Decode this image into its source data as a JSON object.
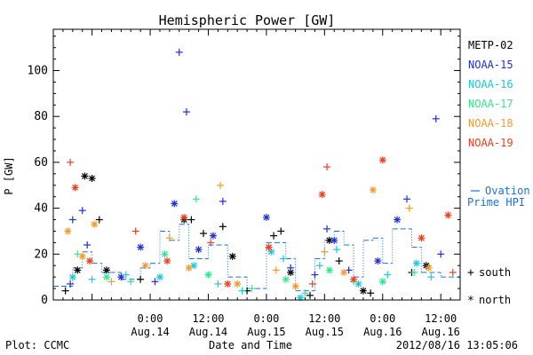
{
  "chart_data": {
    "type": "scatter",
    "title": "Hemispheric Power [GW]",
    "xlabel": "Date and Time",
    "ylabel": "P [GW]",
    "ylim": [
      0,
      118
    ],
    "xlim": [
      "2012-08-13 04:00",
      "2012-08-16 16:00"
    ],
    "y_ticks": [
      0,
      20,
      40,
      60,
      80,
      100
    ],
    "x_ticks": [
      {
        "x": "2012-08-14 00:00",
        "line1": "0:00",
        "line2": "Aug.14"
      },
      {
        "x": "2012-08-14 12:00",
        "line1": "12:00",
        "line2": "Aug.14"
      },
      {
        "x": "2012-08-15 00:00",
        "line1": "0:00",
        "line2": "Aug.15"
      },
      {
        "x": "2012-08-15 12:00",
        "line1": "12:00",
        "line2": "Aug.15"
      },
      {
        "x": "2012-08-16 00:00",
        "line1": "0:00",
        "line2": "Aug.16"
      },
      {
        "x": "2012-08-16 12:00",
        "line1": "12:00",
        "line2": "Aug.16"
      }
    ],
    "grid": false,
    "legend": {
      "placement": "right",
      "markers": [
        {
          "symbol": "+",
          "label": "south"
        },
        {
          "symbol": "*",
          "label": "north"
        }
      ]
    },
    "series": [
      {
        "name": "METP-02",
        "color": "#000000",
        "points": [
          {
            "x": "2012-08-13 06:30",
            "y": 4,
            "m": "+"
          },
          {
            "x": "2012-08-13 09:00",
            "y": 13,
            "m": "*"
          },
          {
            "x": "2012-08-13 10:30",
            "y": 54,
            "m": "*"
          },
          {
            "x": "2012-08-13 12:00",
            "y": 53,
            "m": "*"
          },
          {
            "x": "2012-08-13 13:30",
            "y": 35,
            "m": "+"
          },
          {
            "x": "2012-08-13 15:00",
            "y": 13,
            "m": "*"
          },
          {
            "x": "2012-08-13 22:00",
            "y": 9,
            "m": "+"
          },
          {
            "x": "2012-08-14 07:00",
            "y": 35,
            "m": "*"
          },
          {
            "x": "2012-08-14 08:30",
            "y": 35,
            "m": "+"
          },
          {
            "x": "2012-08-14 11:00",
            "y": 29,
            "m": "+"
          },
          {
            "x": "2012-08-14 15:00",
            "y": 32,
            "m": "+"
          },
          {
            "x": "2012-08-14 17:00",
            "y": 19,
            "m": "*"
          },
          {
            "x": "2012-08-14 20:00",
            "y": 4,
            "m": "+"
          },
          {
            "x": "2012-08-15 01:30",
            "y": 28,
            "m": "+"
          },
          {
            "x": "2012-08-15 03:00",
            "y": 30,
            "m": "+"
          },
          {
            "x": "2012-08-15 05:00",
            "y": 12,
            "m": "*"
          },
          {
            "x": "2012-08-15 09:00",
            "y": 2,
            "m": "+"
          },
          {
            "x": "2012-08-15 13:00",
            "y": 26,
            "m": "*"
          },
          {
            "x": "2012-08-15 15:00",
            "y": 17,
            "m": "+"
          },
          {
            "x": "2012-08-15 20:00",
            "y": 4,
            "m": "*"
          },
          {
            "x": "2012-08-15 21:30",
            "y": 3,
            "m": "+"
          },
          {
            "x": "2012-08-16 06:00",
            "y": 12,
            "m": "+"
          },
          {
            "x": "2012-08-16 09:00",
            "y": 15,
            "m": "*"
          }
        ]
      },
      {
        "name": "NOAA-15",
        "color": "#1c2fd8",
        "points": [
          {
            "x": "2012-08-13 07:30",
            "y": 7,
            "m": "+"
          },
          {
            "x": "2012-08-13 08:00",
            "y": 35,
            "m": "+"
          },
          {
            "x": "2012-08-13 10:00",
            "y": 39,
            "m": "+"
          },
          {
            "x": "2012-08-13 11:00",
            "y": 24,
            "m": "+"
          },
          {
            "x": "2012-08-13 18:00",
            "y": 10,
            "m": "*"
          },
          {
            "x": "2012-08-13 22:00",
            "y": 23,
            "m": "*"
          },
          {
            "x": "2012-08-14 01:00",
            "y": 8,
            "m": "+"
          },
          {
            "x": "2012-08-14 05:00",
            "y": 42,
            "m": "*"
          },
          {
            "x": "2012-08-14 06:00",
            "y": 108,
            "m": "+"
          },
          {
            "x": "2012-08-14 07:30",
            "y": 82,
            "m": "+"
          },
          {
            "x": "2012-08-14 10:00",
            "y": 22,
            "m": "*"
          },
          {
            "x": "2012-08-14 13:00",
            "y": 28,
            "m": "*"
          },
          {
            "x": "2012-08-14 15:00",
            "y": 43,
            "m": "+"
          },
          {
            "x": "2012-08-15 00:00",
            "y": 36,
            "m": "*"
          },
          {
            "x": "2012-08-15 05:00",
            "y": 14,
            "m": "+"
          },
          {
            "x": "2012-08-15 10:00",
            "y": 11,
            "m": "+"
          },
          {
            "x": "2012-08-15 12:30",
            "y": 31,
            "m": "+"
          },
          {
            "x": "2012-08-15 14:00",
            "y": 26,
            "m": "*"
          },
          {
            "x": "2012-08-15 17:00",
            "y": 13,
            "m": "+"
          },
          {
            "x": "2012-08-15 23:00",
            "y": 17,
            "m": "*"
          },
          {
            "x": "2012-08-16 03:00",
            "y": 35,
            "m": "*"
          },
          {
            "x": "2012-08-16 05:00",
            "y": 44,
            "m": "+"
          },
          {
            "x": "2012-08-16 11:00",
            "y": 79,
            "m": "+"
          },
          {
            "x": "2012-08-16 12:00",
            "y": 20,
            "m": "+"
          }
        ]
      },
      {
        "name": "NOAA-16",
        "color": "#18c8e0",
        "points": [
          {
            "x": "2012-08-13 08:00",
            "y": 10,
            "m": "*"
          },
          {
            "x": "2012-08-13 12:00",
            "y": 9,
            "m": "+"
          },
          {
            "x": "2012-08-13 19:00",
            "y": 11,
            "m": "+"
          },
          {
            "x": "2012-08-14 02:00",
            "y": 10,
            "m": "*"
          },
          {
            "x": "2012-08-14 09:00",
            "y": 15,
            "m": "*"
          },
          {
            "x": "2012-08-14 14:00",
            "y": 7,
            "m": "+"
          },
          {
            "x": "2012-08-14 19:00",
            "y": 4,
            "m": "+"
          },
          {
            "x": "2012-08-15 01:00",
            "y": 21,
            "m": "*"
          },
          {
            "x": "2012-08-15 03:30",
            "y": 18,
            "m": "+"
          },
          {
            "x": "2012-08-15 07:00",
            "y": 1,
            "m": "*"
          },
          {
            "x": "2012-08-15 11:00",
            "y": 15,
            "m": "+"
          },
          {
            "x": "2012-08-15 14:30",
            "y": 22,
            "m": "+"
          },
          {
            "x": "2012-08-15 19:00",
            "y": 7,
            "m": "*"
          },
          {
            "x": "2012-08-16 01:00",
            "y": 11,
            "m": "+"
          },
          {
            "x": "2012-08-16 07:00",
            "y": 16,
            "m": "*"
          },
          {
            "x": "2012-08-16 10:00",
            "y": 10,
            "m": "+"
          }
        ]
      },
      {
        "name": "NOAA-17",
        "color": "#2ee88a",
        "points": [
          {
            "x": "2012-08-13 09:00",
            "y": 20,
            "m": "+"
          },
          {
            "x": "2012-08-13 15:00",
            "y": 10,
            "m": "*"
          },
          {
            "x": "2012-08-13 20:00",
            "y": 8,
            "m": "+"
          },
          {
            "x": "2012-08-14 03:00",
            "y": 20,
            "m": "*"
          },
          {
            "x": "2012-08-14 09:30",
            "y": 44,
            "m": "+"
          },
          {
            "x": "2012-08-14 12:00",
            "y": 11,
            "m": "*"
          },
          {
            "x": "2012-08-14 21:00",
            "y": 5,
            "m": "+"
          },
          {
            "x": "2012-08-15 04:00",
            "y": 9,
            "m": "*"
          },
          {
            "x": "2012-08-15 08:00",
            "y": 3,
            "m": "+"
          },
          {
            "x": "2012-08-15 13:00",
            "y": 13,
            "m": "*"
          },
          {
            "x": "2012-08-15 18:00",
            "y": 8,
            "m": "+"
          },
          {
            "x": "2012-08-16 00:00",
            "y": 8,
            "m": "*"
          },
          {
            "x": "2012-08-16 06:30",
            "y": 12,
            "m": "+"
          }
        ]
      },
      {
        "name": "NOAA-18",
        "color": "#f29a2e",
        "points": [
          {
            "x": "2012-08-13 07:00",
            "y": 30,
            "m": "*"
          },
          {
            "x": "2012-08-13 10:00",
            "y": 19,
            "m": "*"
          },
          {
            "x": "2012-08-13 12:30",
            "y": 33,
            "m": "*"
          },
          {
            "x": "2012-08-13 16:00",
            "y": 8,
            "m": "+"
          },
          {
            "x": "2012-08-13 23:00",
            "y": 15,
            "m": "*"
          },
          {
            "x": "2012-08-14 04:00",
            "y": 27,
            "m": "+"
          },
          {
            "x": "2012-08-14 08:00",
            "y": 14,
            "m": "*"
          },
          {
            "x": "2012-08-14 14:30",
            "y": 50,
            "m": "+"
          },
          {
            "x": "2012-08-14 18:00",
            "y": 7,
            "m": "*"
          },
          {
            "x": "2012-08-15 02:00",
            "y": 13,
            "m": "+"
          },
          {
            "x": "2012-08-15 06:00",
            "y": 6,
            "m": "*"
          },
          {
            "x": "2012-08-15 12:00",
            "y": 21,
            "m": "+"
          },
          {
            "x": "2012-08-15 16:00",
            "y": 12,
            "m": "*"
          },
          {
            "x": "2012-08-15 22:00",
            "y": 48,
            "m": "*"
          },
          {
            "x": "2012-08-16 05:30",
            "y": 40,
            "m": "+"
          },
          {
            "x": "2012-08-16 09:30",
            "y": 14,
            "m": "*"
          }
        ]
      },
      {
        "name": "NOAA-19",
        "color": "#e8401c",
        "points": [
          {
            "x": "2012-08-13 07:30",
            "y": 60,
            "m": "+"
          },
          {
            "x": "2012-08-13 08:30",
            "y": 49,
            "m": "*"
          },
          {
            "x": "2012-08-13 11:30",
            "y": 17,
            "m": "*"
          },
          {
            "x": "2012-08-13 21:00",
            "y": 30,
            "m": "+"
          },
          {
            "x": "2012-08-14 03:30",
            "y": 17,
            "m": "*"
          },
          {
            "x": "2012-08-14 07:00",
            "y": 36,
            "m": "*"
          },
          {
            "x": "2012-08-14 12:30",
            "y": 25,
            "m": "+"
          },
          {
            "x": "2012-08-14 16:00",
            "y": 7,
            "m": "*"
          },
          {
            "x": "2012-08-15 00:30",
            "y": 23,
            "m": "*"
          },
          {
            "x": "2012-08-15 09:30",
            "y": 7,
            "m": "+"
          },
          {
            "x": "2012-08-15 11:30",
            "y": 46,
            "m": "*"
          },
          {
            "x": "2012-08-15 12:30",
            "y": 58,
            "m": "+"
          },
          {
            "x": "2012-08-15 18:00",
            "y": 9,
            "m": "*"
          },
          {
            "x": "2012-08-16 00:00",
            "y": 61,
            "m": "*"
          },
          {
            "x": "2012-08-16 08:00",
            "y": 27,
            "m": "*"
          },
          {
            "x": "2012-08-16 13:30",
            "y": 37,
            "m": "*"
          },
          {
            "x": "2012-08-16 14:30",
            "y": 12,
            "m": "+"
          }
        ]
      },
      {
        "name": "Ovation Prime HPI",
        "style": "dashed",
        "color": "#1c6fd8",
        "points": [
          {
            "x": "2012-08-13 04:00",
            "y": 6
          },
          {
            "x": "2012-08-13 08:00",
            "y": 14
          },
          {
            "x": "2012-08-13 10:00",
            "y": 21
          },
          {
            "x": "2012-08-13 12:00",
            "y": 16
          },
          {
            "x": "2012-08-13 14:00",
            "y": 12
          },
          {
            "x": "2012-08-13 18:00",
            "y": 9
          },
          {
            "x": "2012-08-13 22:00",
            "y": 14
          },
          {
            "x": "2012-08-14 00:00",
            "y": 16
          },
          {
            "x": "2012-08-14 02:00",
            "y": 30
          },
          {
            "x": "2012-08-14 04:00",
            "y": 26
          },
          {
            "x": "2012-08-14 06:00",
            "y": 33
          },
          {
            "x": "2012-08-14 08:00",
            "y": 18
          },
          {
            "x": "2012-08-14 12:00",
            "y": 24
          },
          {
            "x": "2012-08-14 16:00",
            "y": 10
          },
          {
            "x": "2012-08-14 20:00",
            "y": 5
          },
          {
            "x": "2012-08-15 00:00",
            "y": 25
          },
          {
            "x": "2012-08-15 04:00",
            "y": 18
          },
          {
            "x": "2012-08-15 06:00",
            "y": 4
          },
          {
            "x": "2012-08-15 10:00",
            "y": 18
          },
          {
            "x": "2012-08-15 12:00",
            "y": 26
          },
          {
            "x": "2012-08-15 14:00",
            "y": 30
          },
          {
            "x": "2012-08-15 16:00",
            "y": 24
          },
          {
            "x": "2012-08-15 18:00",
            "y": 10
          },
          {
            "x": "2012-08-15 20:00",
            "y": 26
          },
          {
            "x": "2012-08-15 22:00",
            "y": 27
          },
          {
            "x": "2012-08-16 00:00",
            "y": 16
          },
          {
            "x": "2012-08-16 02:00",
            "y": 31
          },
          {
            "x": "2012-08-16 06:00",
            "y": 23
          },
          {
            "x": "2012-08-16 08:00",
            "y": 12
          },
          {
            "x": "2012-08-16 12:00",
            "y": 10
          },
          {
            "x": "2012-08-16 16:00",
            "y": 13
          }
        ]
      }
    ]
  },
  "legend_items": [
    {
      "name": "METP-02",
      "color": "#000000"
    },
    {
      "name": "NOAA-15",
      "color": "#1c2fd8"
    },
    {
      "name": "NOAA-16",
      "color": "#18c8e0"
    },
    {
      "name": "NOAA-17",
      "color": "#2ee88a"
    },
    {
      "name": "NOAA-18",
      "color": "#f29a2e"
    },
    {
      "name": "NOAA-19",
      "color": "#e8401c"
    }
  ],
  "ovation_legend": {
    "line1": "Ovation",
    "line2": "Prime HPI",
    "color": "#1c6fd8"
  },
  "footer": {
    "plot_label": "Plot: CCMC",
    "timestamp": "2012/08/16 13:05:06"
  }
}
